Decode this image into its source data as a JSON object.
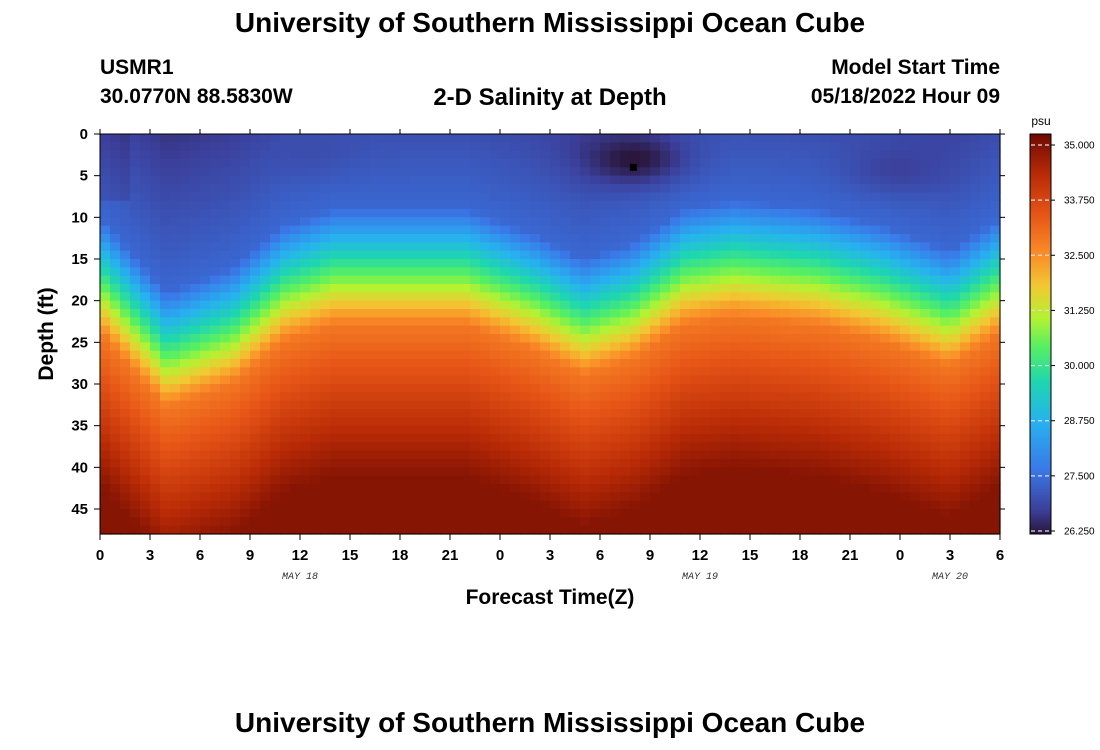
{
  "header": {
    "title": "University of Southern Mississippi Ocean Cube",
    "station": "USMR1",
    "coords": "30.0770N  88.5830W",
    "subtitle": "2-D Salinity at Depth",
    "model_start_label": "Model Start Time",
    "model_start_value": "05/18/2022 Hour 09"
  },
  "footer": {
    "title": "University of Southern Mississippi Ocean Cube"
  },
  "chart_data": {
    "type": "heatmap",
    "title": "2-D Salinity at Depth",
    "xlabel": "Forecast Time(Z)",
    "ylabel": "Depth (ft)",
    "x_range_hours": [
      0,
      54
    ],
    "y_range_ft": [
      0,
      48
    ],
    "x_tick_labels": [
      "0",
      "3",
      "6",
      "9",
      "12",
      "15",
      "18",
      "21",
      "0",
      "3",
      "6",
      "9",
      "12",
      "15",
      "18",
      "21",
      "0",
      "3",
      "6"
    ],
    "x_tick_hours": [
      0,
      3,
      6,
      9,
      12,
      15,
      18,
      21,
      24,
      27,
      30,
      33,
      36,
      39,
      42,
      45,
      48,
      51,
      54
    ],
    "y_tick_labels": [
      "0",
      "5",
      "10",
      "15",
      "20",
      "25",
      "30",
      "35",
      "40",
      "45"
    ],
    "y_tick_values": [
      0,
      5,
      10,
      15,
      20,
      25,
      30,
      35,
      40,
      45
    ],
    "date_labels": [
      {
        "text": "MAY 18",
        "hour": 12
      },
      {
        "text": "MAY 19",
        "hour": 36
      },
      {
        "text": "MAY 20",
        "hour": 51
      }
    ],
    "colorbar": {
      "unit": "psu",
      "min": 26.25,
      "max": 35.0,
      "tick_labels": [
        "35.000",
        "33.750",
        "32.500",
        "31.250",
        "30.000",
        "28.750",
        "27.500",
        "26.250"
      ],
      "tick_values": [
        35.0,
        33.75,
        32.5,
        31.25,
        30.0,
        28.75,
        27.5,
        26.25
      ]
    },
    "halocline_depth_ft": [
      {
        "hour": 0,
        "depth": 12
      },
      {
        "hour": 4,
        "depth": 21
      },
      {
        "hour": 8,
        "depth": 18
      },
      {
        "hour": 11,
        "depth": 13
      },
      {
        "hour": 14,
        "depth": 11
      },
      {
        "hour": 18,
        "depth": 11
      },
      {
        "hour": 22,
        "depth": 11
      },
      {
        "hour": 26,
        "depth": 14
      },
      {
        "hour": 29,
        "depth": 17
      },
      {
        "hour": 32,
        "depth": 15
      },
      {
        "hour": 35,
        "depth": 11
      },
      {
        "hour": 38,
        "depth": 10
      },
      {
        "hour": 43,
        "depth": 11
      },
      {
        "hour": 47,
        "depth": 13
      },
      {
        "hour": 51,
        "depth": 16
      },
      {
        "hour": 54,
        "depth": 12
      }
    ],
    "surface_min_spots": [
      {
        "hour": 32,
        "depth": 3,
        "value": 26.25
      },
      {
        "hour": 12.5,
        "depth": 2,
        "value": 27.0
      },
      {
        "hour": 48,
        "depth": 4,
        "value": 26.8
      }
    ],
    "marker": {
      "hour": 32,
      "depth": 4
    }
  }
}
